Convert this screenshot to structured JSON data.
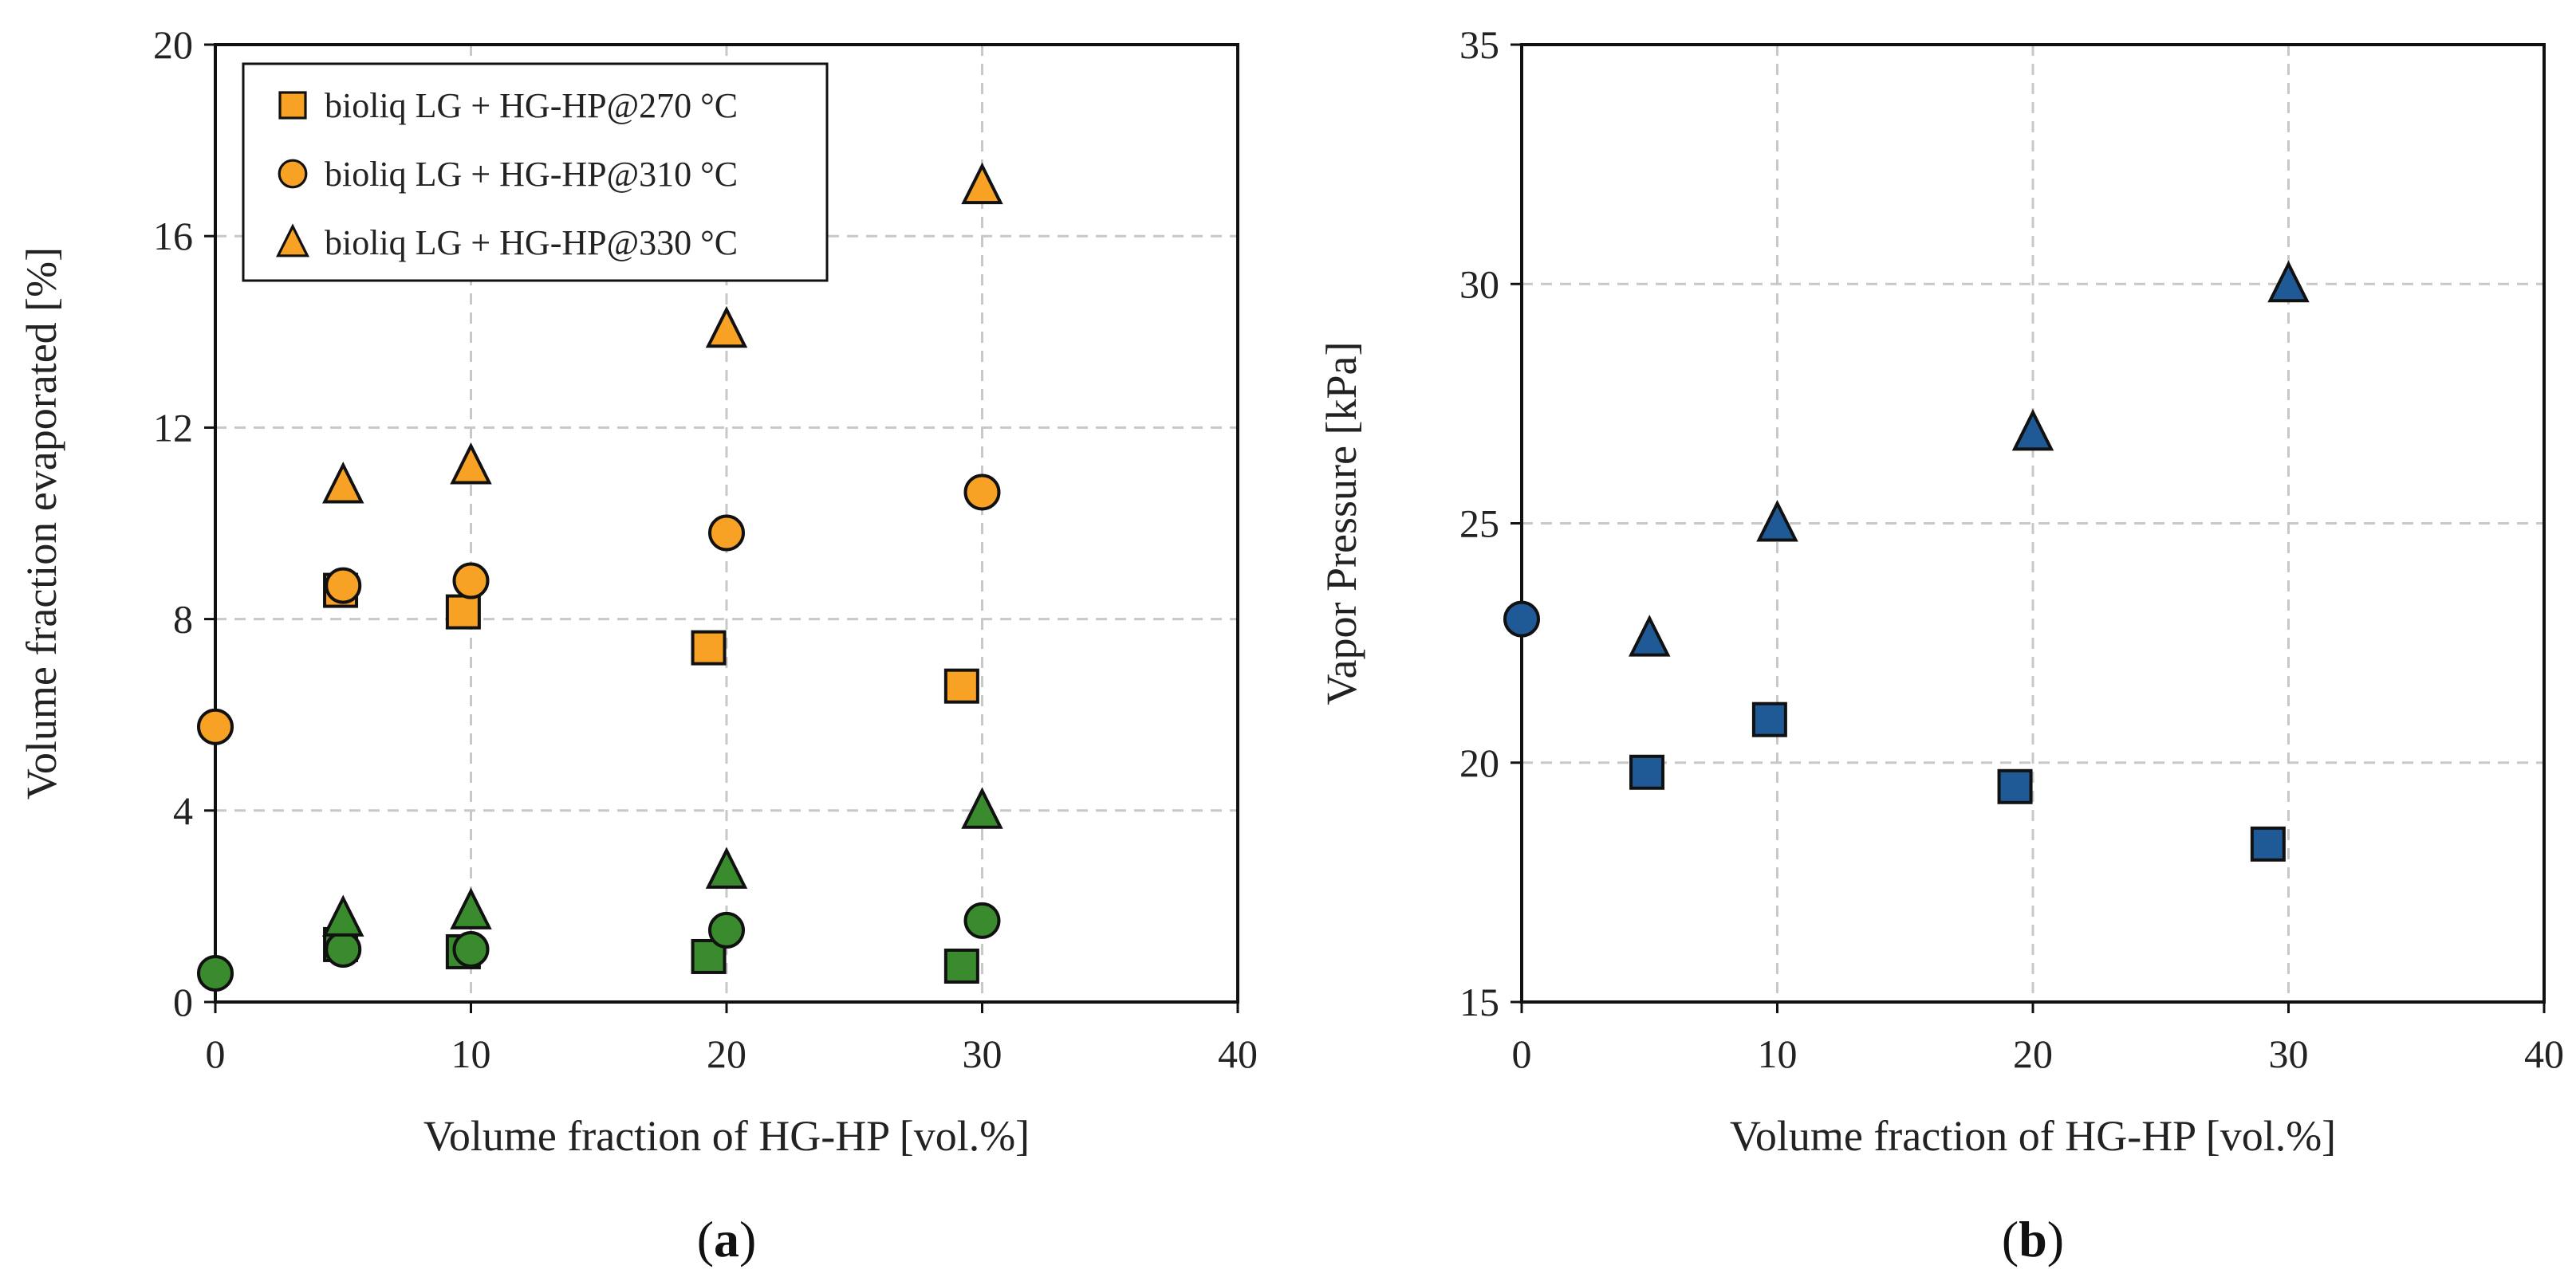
{
  "chart_data": [
    {
      "type": "scatter",
      "panel": "a",
      "panel_label": "a",
      "title": "",
      "xlabel": "Volume fraction of HG-HP [vol.%]",
      "ylabel": "Volume fraction evaporated [%]",
      "xlim": [
        0,
        40
      ],
      "ylim": [
        0,
        20
      ],
      "xticks": [
        "0",
        "10",
        "20",
        "30",
        "40"
      ],
      "yticks": [
        "0",
        "4",
        "8",
        "12",
        "16",
        "20"
      ],
      "grid": true,
      "legend_position": "top-left",
      "legend": [
        {
          "label": "bioliq LG + HG-HP@270 °C",
          "marker": "square",
          "color": "#F7A225"
        },
        {
          "label": "bioliq LG + HG-HP@310 °C",
          "marker": "circle",
          "color": "#F7A225"
        },
        {
          "label": "bioliq LG + HG-HP@330 °C",
          "marker": "triangle",
          "color": "#F7A225"
        }
      ],
      "series": [
        {
          "name": "bioliq LG + HG-HP@270 °C",
          "marker": "square",
          "color": "#F7A225",
          "points": [
            [
              4.9,
              8.6
            ],
            [
              9.7,
              8.15
            ],
            [
              19.3,
              7.4
            ],
            [
              29.2,
              6.6
            ]
          ]
        },
        {
          "name": "bioliq LG + HG-HP@310 °C",
          "marker": "circle",
          "color": "#F7A225",
          "points": [
            [
              0,
              5.75
            ],
            [
              5,
              8.7
            ],
            [
              10,
              8.8
            ],
            [
              20,
              9.8
            ],
            [
              30,
              10.65
            ]
          ]
        },
        {
          "name": "bioliq LG + HG-HP@330 °C",
          "marker": "triangle",
          "color": "#F7A225",
          "points": [
            [
              5,
              10.8
            ],
            [
              10,
              11.2
            ],
            [
              20,
              14.05
            ],
            [
              30,
              17.05
            ]
          ]
        },
        {
          "name": "square (green)",
          "marker": "square",
          "color": "#3A8A2E",
          "points": [
            [
              4.9,
              1.2
            ],
            [
              9.7,
              1.05
            ],
            [
              19.3,
              0.95
            ],
            [
              29.2,
              0.75
            ]
          ]
        },
        {
          "name": "circle (green)",
          "marker": "circle",
          "color": "#3A8A2E",
          "points": [
            [
              0,
              0.6
            ],
            [
              5,
              1.1
            ],
            [
              10,
              1.1
            ],
            [
              20,
              1.5
            ],
            [
              30,
              1.7
            ]
          ]
        },
        {
          "name": "triangle (green)",
          "marker": "triangle",
          "color": "#3A8A2E",
          "points": [
            [
              5,
              1.75
            ],
            [
              10,
              1.9
            ],
            [
              20,
              2.75
            ],
            [
              30,
              4.0
            ]
          ]
        }
      ]
    },
    {
      "type": "scatter",
      "panel": "b",
      "panel_label": "b",
      "title": "",
      "xlabel": "Volume fraction of HG-HP [vol.%]",
      "ylabel": "Vapor Pressure [kPa]",
      "xlim": [
        0,
        40
      ],
      "ylim": [
        15,
        35
      ],
      "xticks": [
        "0",
        "10",
        "20",
        "30",
        "40"
      ],
      "yticks": [
        "15",
        "20",
        "25",
        "30",
        "35"
      ],
      "grid": true,
      "series": [
        {
          "name": "square (blue)",
          "marker": "square",
          "color": "#1F5A96",
          "points": [
            [
              4.9,
              19.8
            ],
            [
              9.7,
              20.9
            ],
            [
              19.3,
              19.5
            ],
            [
              29.2,
              18.3
            ]
          ]
        },
        {
          "name": "circle (blue)",
          "marker": "circle",
          "color": "#1F5A96",
          "points": [
            [
              0,
              23.0
            ]
          ]
        },
        {
          "name": "triangle (blue)",
          "marker": "triangle",
          "color": "#1F5A96",
          "points": [
            [
              5,
              22.6
            ],
            [
              10,
              25.0
            ],
            [
              20,
              26.9
            ],
            [
              30,
              30.0
            ]
          ]
        }
      ]
    }
  ]
}
